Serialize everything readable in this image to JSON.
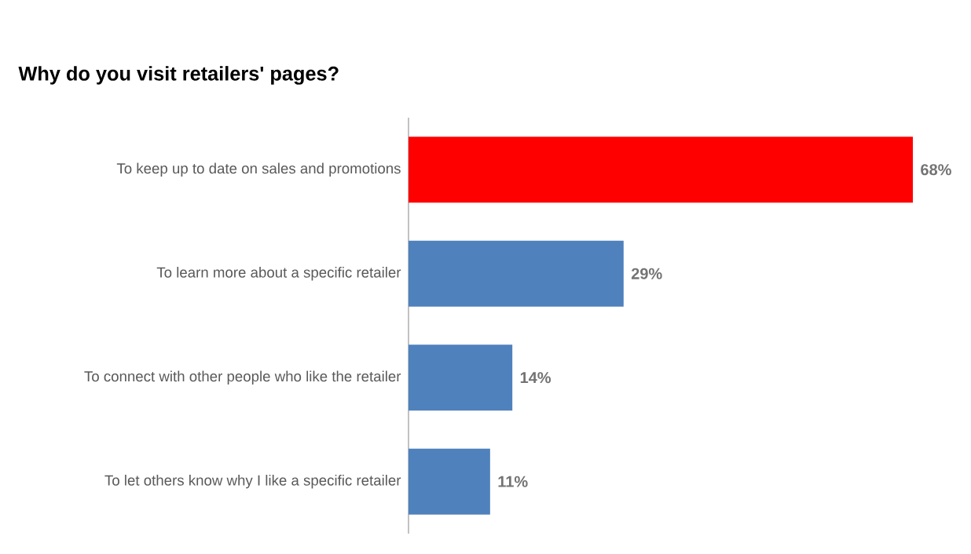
{
  "chart_data": {
    "type": "bar",
    "orientation": "horizontal",
    "title": "Why do you visit retailers' pages?",
    "categories": [
      "To keep up to date on sales and promotions",
      "To learn more about a specific retailer",
      "To connect with other people who like the retailer",
      "To let others know why I like a specific retailer"
    ],
    "values": [
      68,
      29,
      14,
      11
    ],
    "colors": [
      "#ff0000",
      "#4f81bd",
      "#4f81bd",
      "#4f81bd"
    ],
    "value_labels": [
      "68%",
      "29%",
      "14%",
      "11%"
    ]
  }
}
